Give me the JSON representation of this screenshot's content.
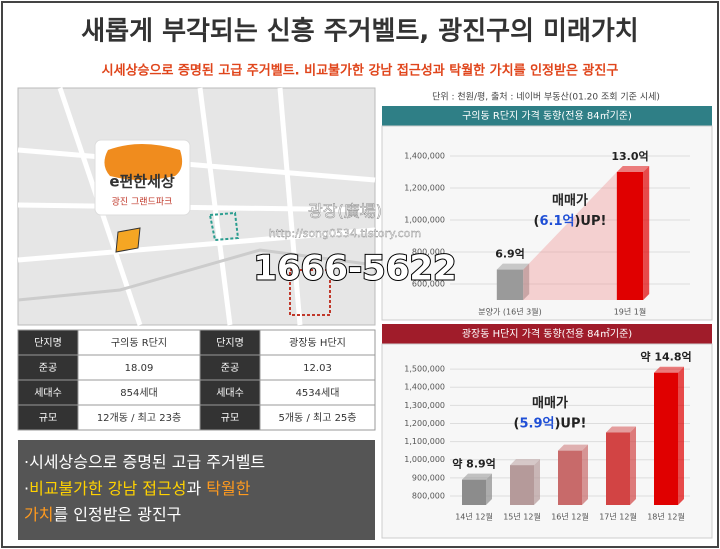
{
  "header": {
    "title": "새롭게 부각되는 신흥 주거벨트, 광진구의 미래가치",
    "subtitle": "시세상승으로 증명된 고급 주거벨트. 비교불가한 강남 접근성과 탁월한 가치를 인정받은 광진구"
  },
  "map": {
    "logo": "e편한세상",
    "logo_sub": "광진 그랜드파크",
    "watermark": "광장(廣場)",
    "url": "http://song0534.tistory.com",
    "phone": "1666-5622"
  },
  "table": {
    "rows": [
      [
        "단지명",
        "구의동 R단지",
        "단지명",
        "광장동 H단지"
      ],
      [
        "준공",
        "18.09",
        "준공",
        "12.03"
      ],
      [
        "세대수",
        "854세대",
        "세대수",
        "4534세대"
      ],
      [
        "규모",
        "12개동 / 최고 23층",
        "규모",
        "5개동 / 최고 25층"
      ]
    ]
  },
  "bullets": {
    "line1": "·시세상승으로 증명된 고급 주거벨트",
    "line2": [
      "·",
      "비교불가한 강남 접근성",
      "과 ",
      "탁월한"
    ],
    "line3": [
      "가치",
      "를 인정받은 광진구"
    ]
  },
  "source_note": "단위 : 천원/평, 출처 : 네이버 부동산(01.20 조회 기준 시세)",
  "chart_data": [
    {
      "type": "bar",
      "title": "구의동 R단지 가격 동향(전용 84㎡기준)",
      "categories": [
        "분양가 (16년 3월)",
        "19년 1월"
      ],
      "values": [
        690000,
        1300000
      ],
      "value_labels": [
        "6.9억",
        "13.0억"
      ],
      "colors": [
        "#9a9a9a",
        "#e00000"
      ],
      "ylim": [
        500000,
        1500000
      ],
      "yticks": [
        {
          "value": 600000,
          "label": "600,000"
        },
        {
          "value": 800000,
          "label": "800,000"
        },
        {
          "value": 1000000,
          "label": "1,000,000"
        },
        {
          "value": 1200000,
          "label": "1,200,000"
        },
        {
          "value": 1400000,
          "label": "1,400,000"
        }
      ],
      "annotation": {
        "label": "매매가",
        "prefix": "(",
        "highlight": "6.1억",
        "suffix": ")UP!"
      }
    },
    {
      "type": "bar",
      "title": "광장동 H단지 가격 동향(전용 84㎡기준)",
      "categories": [
        "14년 12월",
        "15년 12월",
        "16년 12월",
        "17년 12월",
        "18년 12월"
      ],
      "values": [
        890000,
        970000,
        1050000,
        1150000,
        1480000
      ],
      "value_labels": [
        "약 8.9억",
        null,
        null,
        null,
        "약 14.8억"
      ],
      "colors": [
        "#8c8c8c",
        "#b59a9a",
        "#c86a6a",
        "#d24444",
        "#e00000"
      ],
      "ylim": [
        750000,
        1550000
      ],
      "yticks": [
        {
          "value": 800000,
          "label": "800,000"
        },
        {
          "value": 900000,
          "label": "900,000"
        },
        {
          "value": 1000000,
          "label": "1,000,000"
        },
        {
          "value": 1100000,
          "label": "1,100,000"
        },
        {
          "value": 1200000,
          "label": "1,200,000"
        },
        {
          "value": 1300000,
          "label": "1,300,000"
        },
        {
          "value": 1400000,
          "label": "1,400,000"
        },
        {
          "value": 1500000,
          "label": "1,500,000"
        }
      ],
      "annotation": {
        "label": "매매가",
        "prefix": "(",
        "highlight": "5.9억",
        "suffix": ")UP!"
      }
    }
  ]
}
